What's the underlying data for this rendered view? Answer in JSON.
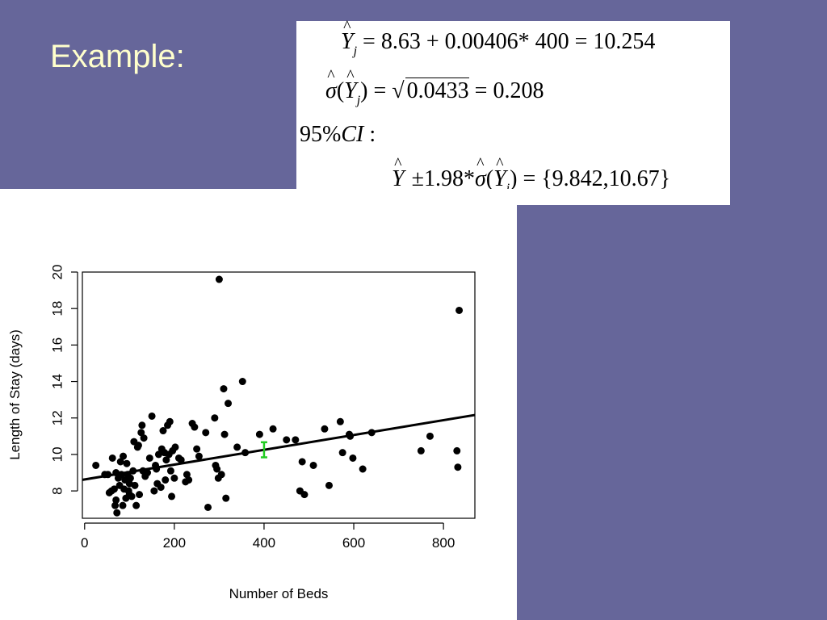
{
  "slide": {
    "title": "Example:"
  },
  "formulas": {
    "line1": {
      "yhat": "Y",
      "sub": "j",
      "rhs": "= 8.63 + 0.00406* 400 = 10.254"
    },
    "line2": {
      "sigma": "σ",
      "open": "(",
      "yhat": "Y",
      "sub": "j",
      "close": ")",
      "eq": "=",
      "radicand": "0.0433",
      "rhs": "= 0.208"
    },
    "line3": {
      "pct": "95%",
      "ci": "CI",
      "colon": ":"
    },
    "line4": {
      "yhat": "Y",
      "sub": ".",
      "pm": "±1.98*",
      "sigma": "σ",
      "open": "(",
      "yhat2": "Y",
      "sub2": "j",
      "close": ")",
      "rhs": "= {9.842,10.67}"
    }
  },
  "chart_data": {
    "type": "scatter",
    "title": "",
    "xlabel": "Number of Beds",
    "ylabel": "Length of Stay (days)",
    "xlim": [
      -5,
      870
    ],
    "ylim": [
      6.5,
      20
    ],
    "xticks": [
      0,
      200,
      400,
      600,
      800
    ],
    "yticks": [
      8,
      10,
      12,
      14,
      16,
      18,
      20
    ],
    "grid": false,
    "regression_line": {
      "intercept": 8.63,
      "slope": 0.00406,
      "color": "#000000"
    },
    "confidence_interval": {
      "x": 400,
      "lower": 9.842,
      "upper": 10.67,
      "color": "#22cc22"
    },
    "point_color": "#000000",
    "points": [
      [
        25,
        9.4
      ],
      [
        45,
        8.9
      ],
      [
        52,
        8.9
      ],
      [
        55,
        7.9
      ],
      [
        60,
        8.0
      ],
      [
        62,
        9.8
      ],
      [
        66,
        8.1
      ],
      [
        68,
        7.2
      ],
      [
        70,
        7.5
      ],
      [
        70,
        9.0
      ],
      [
        72,
        6.8
      ],
      [
        75,
        8.7
      ],
      [
        78,
        8.3
      ],
      [
        80,
        9.6
      ],
      [
        82,
        8.9
      ],
      [
        85,
        7.2
      ],
      [
        86,
        9.9
      ],
      [
        88,
        8.1
      ],
      [
        90,
        8.6
      ],
      [
        92,
        7.6
      ],
      [
        94,
        9.5
      ],
      [
        96,
        8.9
      ],
      [
        98,
        8.0
      ],
      [
        100,
        7.8
      ],
      [
        100,
        8.4
      ],
      [
        102,
        8.7
      ],
      [
        105,
        7.7
      ],
      [
        108,
        9.1
      ],
      [
        110,
        10.7
      ],
      [
        112,
        8.3
      ],
      [
        115,
        7.2
      ],
      [
        118,
        10.4
      ],
      [
        120,
        10.5
      ],
      [
        122,
        7.8
      ],
      [
        126,
        11.2
      ],
      [
        128,
        11.6
      ],
      [
        130,
        9.1
      ],
      [
        132,
        10.9
      ],
      [
        135,
        8.8
      ],
      [
        140,
        9.0
      ],
      [
        145,
        9.8
      ],
      [
        150,
        12.1
      ],
      [
        155,
        8.0
      ],
      [
        158,
        9.4
      ],
      [
        160,
        9.2
      ],
      [
        162,
        8.4
      ],
      [
        165,
        10.0
      ],
      [
        170,
        8.2
      ],
      [
        172,
        10.3
      ],
      [
        175,
        11.3
      ],
      [
        178,
        10.1
      ],
      [
        180,
        8.6
      ],
      [
        182,
        9.7
      ],
      [
        185,
        11.6
      ],
      [
        188,
        10.0
      ],
      [
        190,
        11.8
      ],
      [
        192,
        9.1
      ],
      [
        194,
        7.7
      ],
      [
        196,
        10.2
      ],
      [
        200,
        8.7
      ],
      [
        202,
        10.4
      ],
      [
        210,
        9.8
      ],
      [
        215,
        9.7
      ],
      [
        225,
        8.5
      ],
      [
        228,
        8.9
      ],
      [
        232,
        8.6
      ],
      [
        240,
        11.7
      ],
      [
        245,
        11.5
      ],
      [
        250,
        10.3
      ],
      [
        255,
        9.9
      ],
      [
        270,
        11.2
      ],
      [
        275,
        7.1
      ],
      [
        290,
        12.0
      ],
      [
        292,
        9.4
      ],
      [
        295,
        9.2
      ],
      [
        298,
        8.7
      ],
      [
        300,
        19.6
      ],
      [
        305,
        8.9
      ],
      [
        310,
        13.6
      ],
      [
        312,
        11.1
      ],
      [
        315,
        7.6
      ],
      [
        320,
        12.8
      ],
      [
        340,
        10.4
      ],
      [
        352,
        14.0
      ],
      [
        358,
        10.1
      ],
      [
        390,
        11.1
      ],
      [
        420,
        11.4
      ],
      [
        450,
        10.8
      ],
      [
        470,
        10.8
      ],
      [
        480,
        8.0
      ],
      [
        490,
        7.8
      ],
      [
        485,
        9.6
      ],
      [
        510,
        9.4
      ],
      [
        535,
        11.4
      ],
      [
        545,
        8.3
      ],
      [
        570,
        11.8
      ],
      [
        575,
        10.1
      ],
      [
        590,
        11.1
      ],
      [
        592,
        11.0
      ],
      [
        598,
        9.8
      ],
      [
        620,
        9.2
      ],
      [
        640,
        11.2
      ],
      [
        750,
        10.2
      ],
      [
        770,
        11.0
      ],
      [
        830,
        10.2
      ],
      [
        832,
        9.3
      ],
      [
        835,
        17.9
      ]
    ]
  }
}
